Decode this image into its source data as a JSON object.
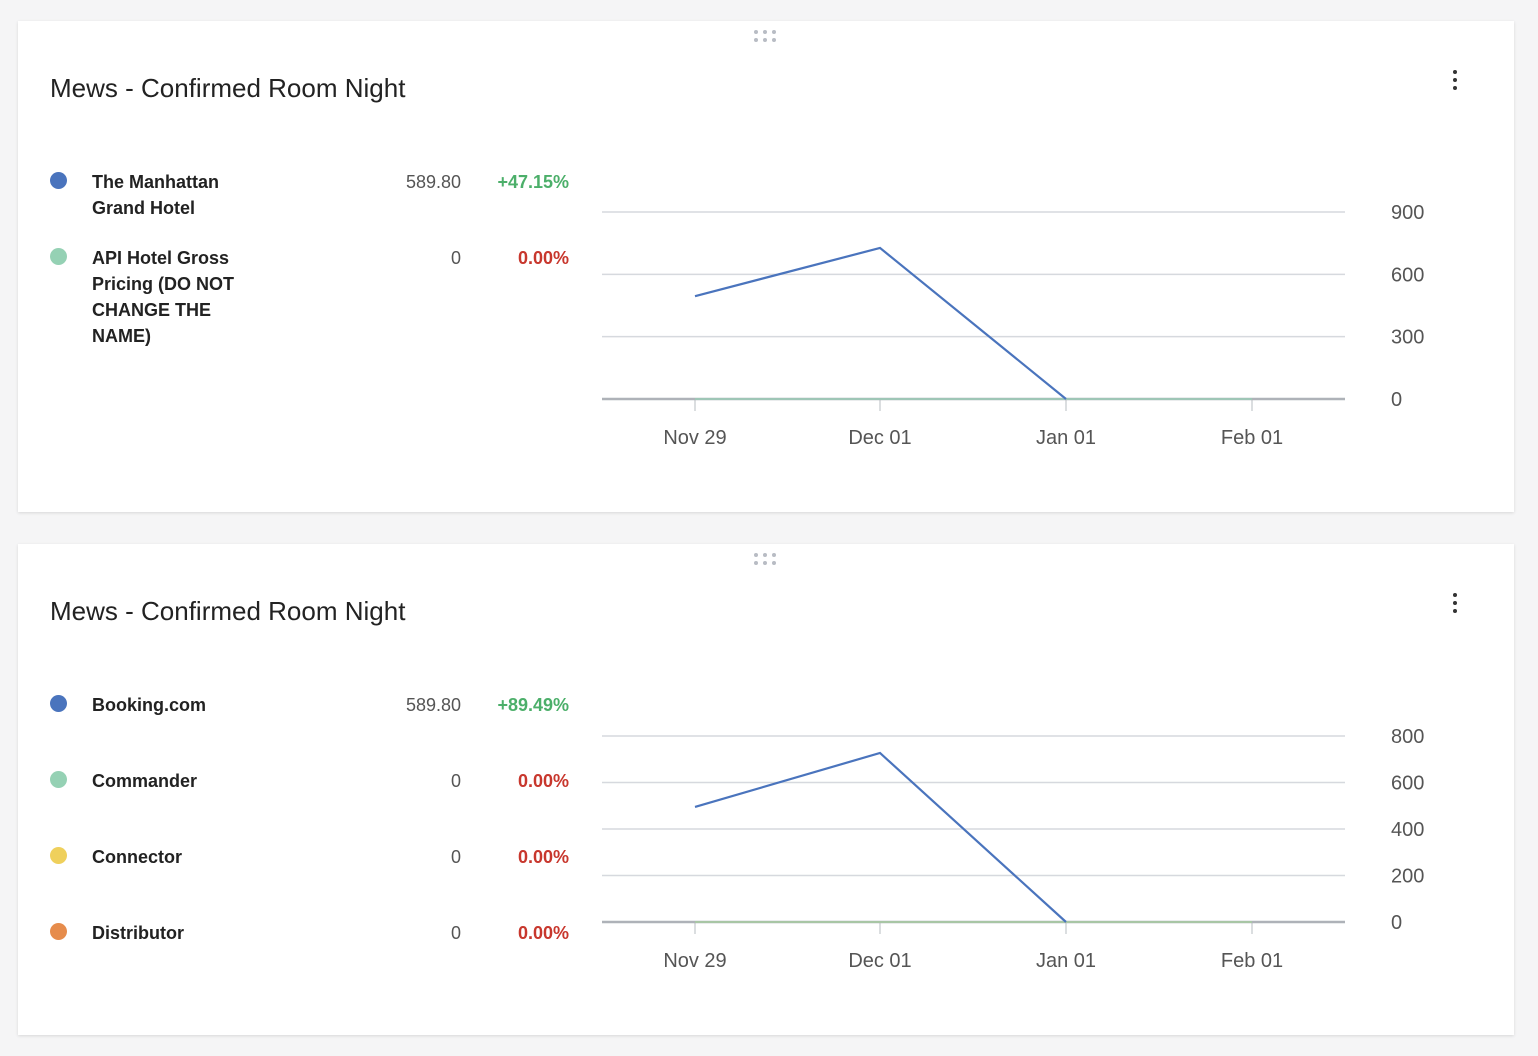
{
  "colors": {
    "positive": "#4caf6a",
    "negative": "#c8372d",
    "line": "#4a74bd",
    "grid": "#d6d9de",
    "axis": "#aeb2b8"
  },
  "widgets": [
    {
      "title": "Mews - Confirmed Room Night",
      "menu_icon": "more-vertical-icon",
      "drag_icon": "drag-handle-icon",
      "legend": [
        {
          "name": "The Manhattan Grand Hotel",
          "value": "589.80",
          "change": "+47.15%",
          "trend": "positive",
          "color": "#4a74bd"
        },
        {
          "name": "API Hotel Gross Pricing (DO NOT CHANGE THE NAME)",
          "value": "0",
          "change": "0.00%",
          "trend": "negative",
          "color": "#95d1b4"
        }
      ]
    },
    {
      "title": "Mews - Confirmed Room Night",
      "menu_icon": "more-vertical-icon",
      "drag_icon": "drag-handle-icon",
      "legend": [
        {
          "name": "Booking.com",
          "value": "589.80",
          "change": "+89.49%",
          "trend": "positive",
          "color": "#4a74bd"
        },
        {
          "name": "Commander",
          "value": "0",
          "change": "0.00%",
          "trend": "negative",
          "color": "#95d1b4"
        },
        {
          "name": "Connector",
          "value": "0",
          "change": "0.00%",
          "trend": "negative",
          "color": "#efd05c"
        },
        {
          "name": "Distributor",
          "value": "0",
          "change": "0.00%",
          "trend": "negative",
          "color": "#e68c4c"
        }
      ]
    }
  ],
  "chart_data": [
    {
      "type": "line",
      "categories": [
        "Nov 29",
        "Dec 01",
        "Jan 01",
        "Feb 01"
      ],
      "series": [
        {
          "name": "The Manhattan Grand Hotel",
          "color": "#4a74bd",
          "values": [
            495,
            727,
            0,
            null
          ]
        },
        {
          "name": "API Hotel Gross Pricing (DO NOT CHANGE THE NAME)",
          "color": "#95d1b4",
          "values": [
            0,
            0,
            0,
            0
          ]
        }
      ],
      "ylim": [
        0,
        900
      ],
      "yticks": [
        0,
        300,
        600,
        900
      ],
      "yaxis_side": "right",
      "grid": true
    },
    {
      "type": "line",
      "categories": [
        "Nov 29",
        "Dec 01",
        "Jan 01",
        "Feb 01"
      ],
      "series": [
        {
          "name": "Booking.com",
          "color": "#4a74bd",
          "values": [
            495,
            727,
            0,
            null
          ]
        },
        {
          "name": "Commander",
          "color": "#95d1b4",
          "values": [
            0,
            0,
            0,
            0
          ]
        },
        {
          "name": "Connector",
          "color": "#efd05c",
          "values": [
            0,
            0,
            0,
            0
          ]
        },
        {
          "name": "Distributor",
          "color": "#e68c4c",
          "values": [
            0,
            0,
            0,
            0
          ]
        }
      ],
      "ylim": [
        0,
        800
      ],
      "yticks": [
        0,
        200,
        400,
        600,
        800
      ],
      "yaxis_side": "right",
      "grid": true
    }
  ]
}
